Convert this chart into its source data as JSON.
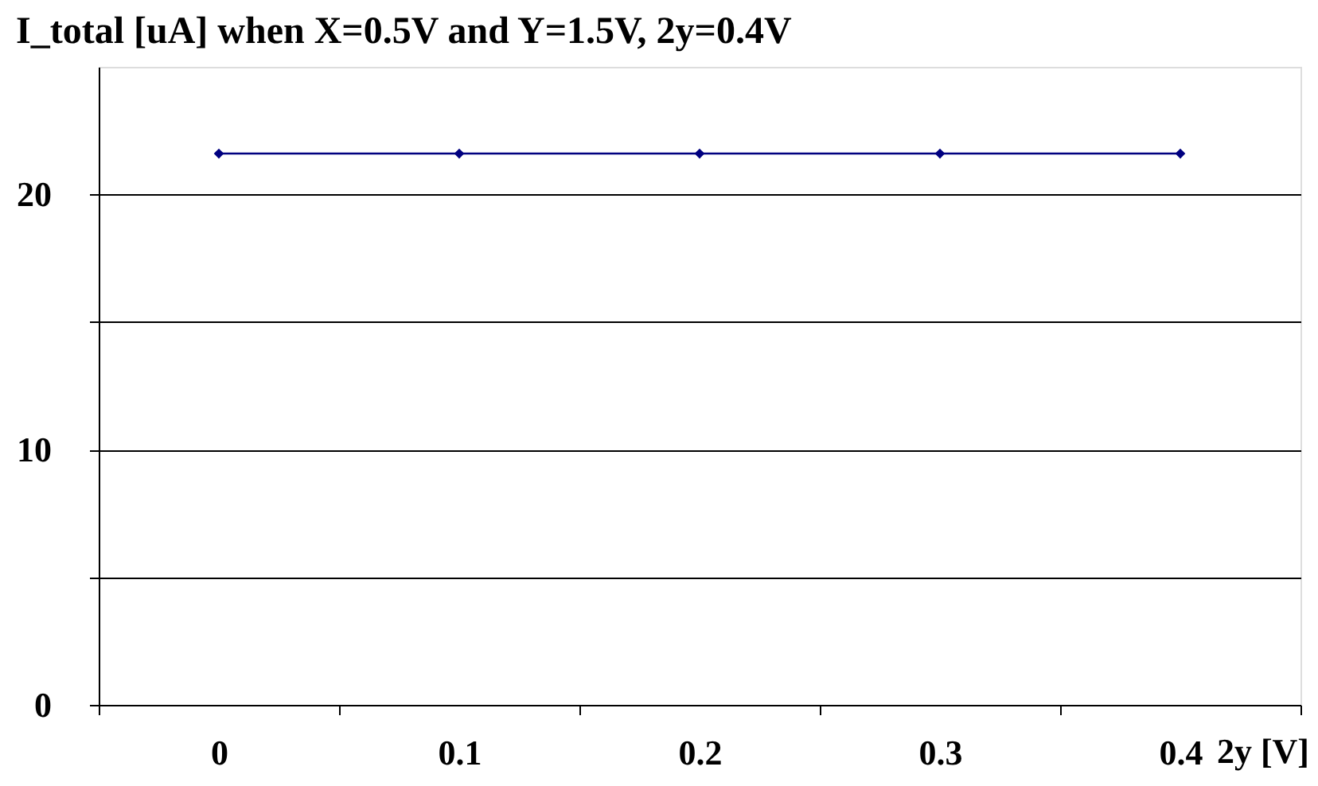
{
  "chart_data": {
    "type": "line",
    "title": "I_total [uA] when X=0.5V and Y=1.5V, 2y=0.4V",
    "xlabel": "2y [V]",
    "categories": [
      "0",
      "0.1",
      "0.2",
      "0.3",
      "0.4"
    ],
    "series": [
      {
        "color": "#000080",
        "values": [
          21.6,
          21.6,
          21.6,
          21.6,
          21.6
        ]
      }
    ],
    "ylim": [
      0,
      25
    ],
    "yticks": [
      0,
      {
        "value": 5,
        "label": null
      },
      10,
      {
        "value": 15,
        "label": null
      },
      20
    ],
    "grid": "y",
    "marker": "diamond",
    "line_style": "solid",
    "legend": false
  }
}
